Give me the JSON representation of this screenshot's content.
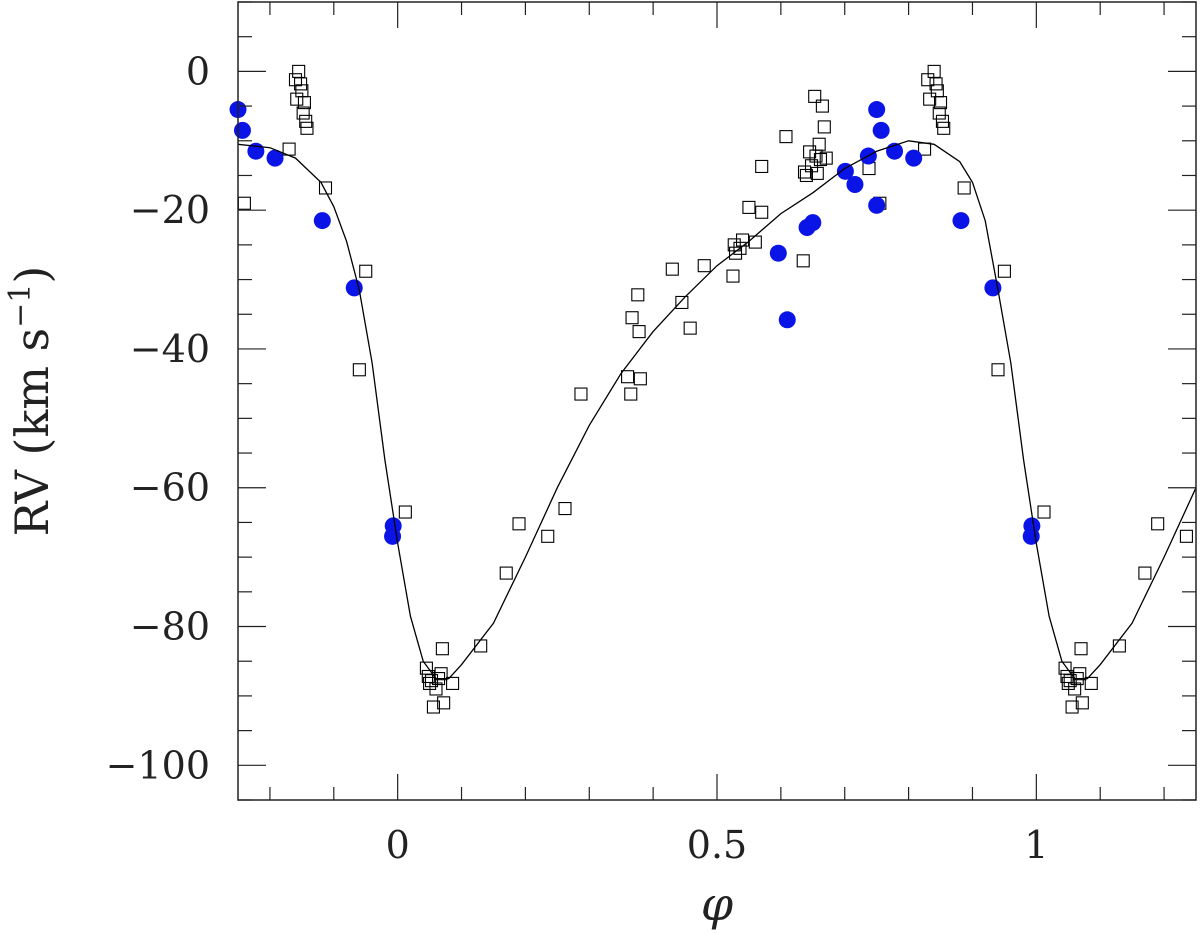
{
  "chart_data": {
    "type": "scatter",
    "xlabel": "φ",
    "ylabel": "RV (km s",
    "ylabel_sup": "−1",
    "ylabel_close": ")",
    "xlim": [
      -0.25,
      1.25
    ],
    "ylim": [
      -105,
      10
    ],
    "x_ticks": [
      {
        "value": 0,
        "label": "0"
      },
      {
        "value": 0.5,
        "label": "0.5"
      },
      {
        "value": 1,
        "label": "1"
      }
    ],
    "x_minor_step": 0.1,
    "y_ticks": [
      {
        "value": 0,
        "label": "0"
      },
      {
        "value": -20,
        "label": "−20"
      },
      {
        "value": -40,
        "label": "−40"
      },
      {
        "value": -60,
        "label": "−60"
      },
      {
        "value": -80,
        "label": "−80"
      },
      {
        "value": -100,
        "label": "−100"
      }
    ],
    "y_minor_step": 5,
    "grid": false,
    "series": [
      {
        "style": "open-square",
        "color": "#000000",
        "points": [
          [
            -0.24,
            -19.0
          ],
          [
            -0.17,
            -11.2
          ],
          [
            -0.16,
            -1.2
          ],
          [
            -0.158,
            -4.0
          ],
          [
            -0.155,
            0.0
          ],
          [
            -0.152,
            -1.8
          ],
          [
            -0.15,
            -2.8
          ],
          [
            -0.148,
            -6.0
          ],
          [
            -0.146,
            -4.5
          ],
          [
            -0.144,
            -7.2
          ],
          [
            -0.142,
            -8.2
          ],
          [
            -0.113,
            -16.8
          ],
          [
            -0.05,
            -28.8
          ],
          [
            -0.06,
            -43.0
          ],
          [
            0.012,
            -63.5
          ],
          [
            0.045,
            -86.0
          ],
          [
            0.048,
            -87.2
          ],
          [
            0.05,
            -88.2
          ],
          [
            0.053,
            -87.8
          ],
          [
            0.056,
            -91.6
          ],
          [
            0.06,
            -89.0
          ],
          [
            0.064,
            -87.5
          ],
          [
            0.068,
            -86.8
          ],
          [
            0.07,
            -83.2
          ],
          [
            0.072,
            -91.0
          ],
          [
            0.086,
            -88.2
          ],
          [
            0.13,
            -82.8
          ],
          [
            0.17,
            -72.3
          ],
          [
            0.19,
            -65.2
          ],
          [
            0.235,
            -67.0
          ],
          [
            0.262,
            -63.0
          ],
          [
            0.287,
            -46.5
          ],
          [
            0.36,
            -44.0
          ],
          [
            0.365,
            -46.5
          ],
          [
            0.367,
            -35.5
          ],
          [
            0.376,
            -32.2
          ],
          [
            0.378,
            -37.5
          ],
          [
            0.38,
            -44.3
          ],
          [
            0.43,
            -28.5
          ],
          [
            0.445,
            -33.3
          ],
          [
            0.458,
            -37.0
          ],
          [
            0.48,
            -28.0
          ],
          [
            0.525,
            -29.5
          ],
          [
            0.527,
            -25.0
          ],
          [
            0.529,
            -26.2
          ],
          [
            0.536,
            -25.5
          ],
          [
            0.54,
            -24.3
          ],
          [
            0.55,
            -19.6
          ],
          [
            0.56,
            -24.6
          ],
          [
            0.57,
            -20.3
          ],
          [
            0.57,
            -13.7
          ],
          [
            0.635,
            -27.3
          ],
          [
            0.637,
            -14.5
          ],
          [
            0.64,
            -15.0
          ],
          [
            0.645,
            -11.6
          ],
          [
            0.648,
            -13.6
          ],
          [
            0.653,
            -3.6
          ],
          [
            0.655,
            -12.2
          ],
          [
            0.657,
            -14.7
          ],
          [
            0.66,
            -10.5
          ],
          [
            0.662,
            -12.7
          ],
          [
            0.665,
            -5.0
          ],
          [
            0.668,
            -8.0
          ],
          [
            0.671,
            -12.5
          ],
          [
            0.608,
            -9.4
          ],
          [
            0.738,
            -14.0
          ],
          [
            0.755,
            -19.0
          ],
          [
            0.83,
            -1.2
          ],
          [
            0.833,
            -4.0
          ],
          [
            0.84,
            0.0
          ],
          [
            0.843,
            -1.8
          ],
          [
            0.845,
            -2.8
          ],
          [
            0.848,
            -6.0
          ],
          [
            0.85,
            -4.5
          ],
          [
            0.853,
            -7.2
          ],
          [
            0.855,
            -8.2
          ],
          [
            0.825,
            -11.2
          ],
          [
            0.887,
            -16.8
          ],
          [
            0.95,
            -28.8
          ],
          [
            0.94,
            -43.0
          ],
          [
            1.012,
            -63.5
          ],
          [
            1.045,
            -86.0
          ],
          [
            1.048,
            -87.2
          ],
          [
            1.05,
            -88.2
          ],
          [
            1.053,
            -87.8
          ],
          [
            1.056,
            -91.6
          ],
          [
            1.06,
            -89.0
          ],
          [
            1.064,
            -87.5
          ],
          [
            1.068,
            -86.8
          ],
          [
            1.07,
            -83.2
          ],
          [
            1.072,
            -91.0
          ],
          [
            1.086,
            -88.2
          ],
          [
            1.13,
            -82.8
          ],
          [
            1.17,
            -72.3
          ],
          [
            1.19,
            -65.2
          ],
          [
            1.235,
            -67.0
          ]
        ]
      },
      {
        "style": "filled-circle",
        "color": "#0a14e6",
        "points": [
          [
            -0.25,
            -5.5
          ],
          [
            -0.243,
            -8.5
          ],
          [
            -0.222,
            -11.5
          ],
          [
            -0.192,
            -12.5
          ],
          [
            -0.118,
            -21.5
          ],
          [
            -0.068,
            -31.2
          ],
          [
            -0.007,
            -65.5
          ],
          [
            -0.008,
            -67.0
          ],
          [
            0.596,
            -26.2
          ],
          [
            0.61,
            -35.8
          ],
          [
            0.641,
            -22.5
          ],
          [
            0.65,
            -21.8
          ],
          [
            0.701,
            -14.4
          ],
          [
            0.716,
            -16.3
          ],
          [
            0.737,
            -12.2
          ],
          [
            0.75,
            -5.5
          ],
          [
            0.75,
            -19.3
          ],
          [
            0.757,
            -8.5
          ],
          [
            0.778,
            -11.5
          ],
          [
            0.808,
            -12.5
          ],
          [
            0.882,
            -21.5
          ],
          [
            0.932,
            -31.2
          ],
          [
            0.993,
            -65.5
          ],
          [
            0.992,
            -67.0
          ]
        ]
      },
      {
        "style": "line",
        "color": "#000000",
        "points": [
          [
            -0.25,
            -10.5
          ],
          [
            -0.2,
            -11.0
          ],
          [
            -0.16,
            -12.5
          ],
          [
            -0.12,
            -16.0
          ],
          [
            -0.1,
            -19.5
          ],
          [
            -0.08,
            -24.5
          ],
          [
            -0.06,
            -31.5
          ],
          [
            -0.04,
            -42.0
          ],
          [
            -0.02,
            -56.0
          ],
          [
            0.0,
            -68.0
          ],
          [
            0.02,
            -78.5
          ],
          [
            0.04,
            -85.0
          ],
          [
            0.06,
            -87.5
          ],
          [
            0.08,
            -87.5
          ],
          [
            0.1,
            -85.5
          ],
          [
            0.15,
            -79.5
          ],
          [
            0.2,
            -70.0
          ],
          [
            0.25,
            -60.0
          ],
          [
            0.3,
            -51.0
          ],
          [
            0.35,
            -43.5
          ],
          [
            0.4,
            -37.5
          ],
          [
            0.45,
            -32.5
          ],
          [
            0.5,
            -28.0
          ],
          [
            0.55,
            -24.5
          ],
          [
            0.6,
            -20.5
          ],
          [
            0.65,
            -17.5
          ],
          [
            0.7,
            -14.0
          ],
          [
            0.75,
            -11.5
          ],
          [
            0.8,
            -10.0
          ],
          [
            0.84,
            -10.5
          ],
          [
            0.88,
            -13.0
          ],
          [
            0.9,
            -16.0
          ],
          [
            0.92,
            -21.5
          ],
          [
            0.94,
            -31.5
          ],
          [
            0.96,
            -42.0
          ],
          [
            0.98,
            -56.0
          ],
          [
            1.0,
            -68.0
          ],
          [
            1.02,
            -78.5
          ],
          [
            1.04,
            -85.0
          ],
          [
            1.06,
            -87.5
          ],
          [
            1.08,
            -87.5
          ],
          [
            1.1,
            -85.5
          ],
          [
            1.15,
            -79.5
          ],
          [
            1.2,
            -70.0
          ],
          [
            1.25,
            -60.0
          ]
        ]
      }
    ]
  }
}
